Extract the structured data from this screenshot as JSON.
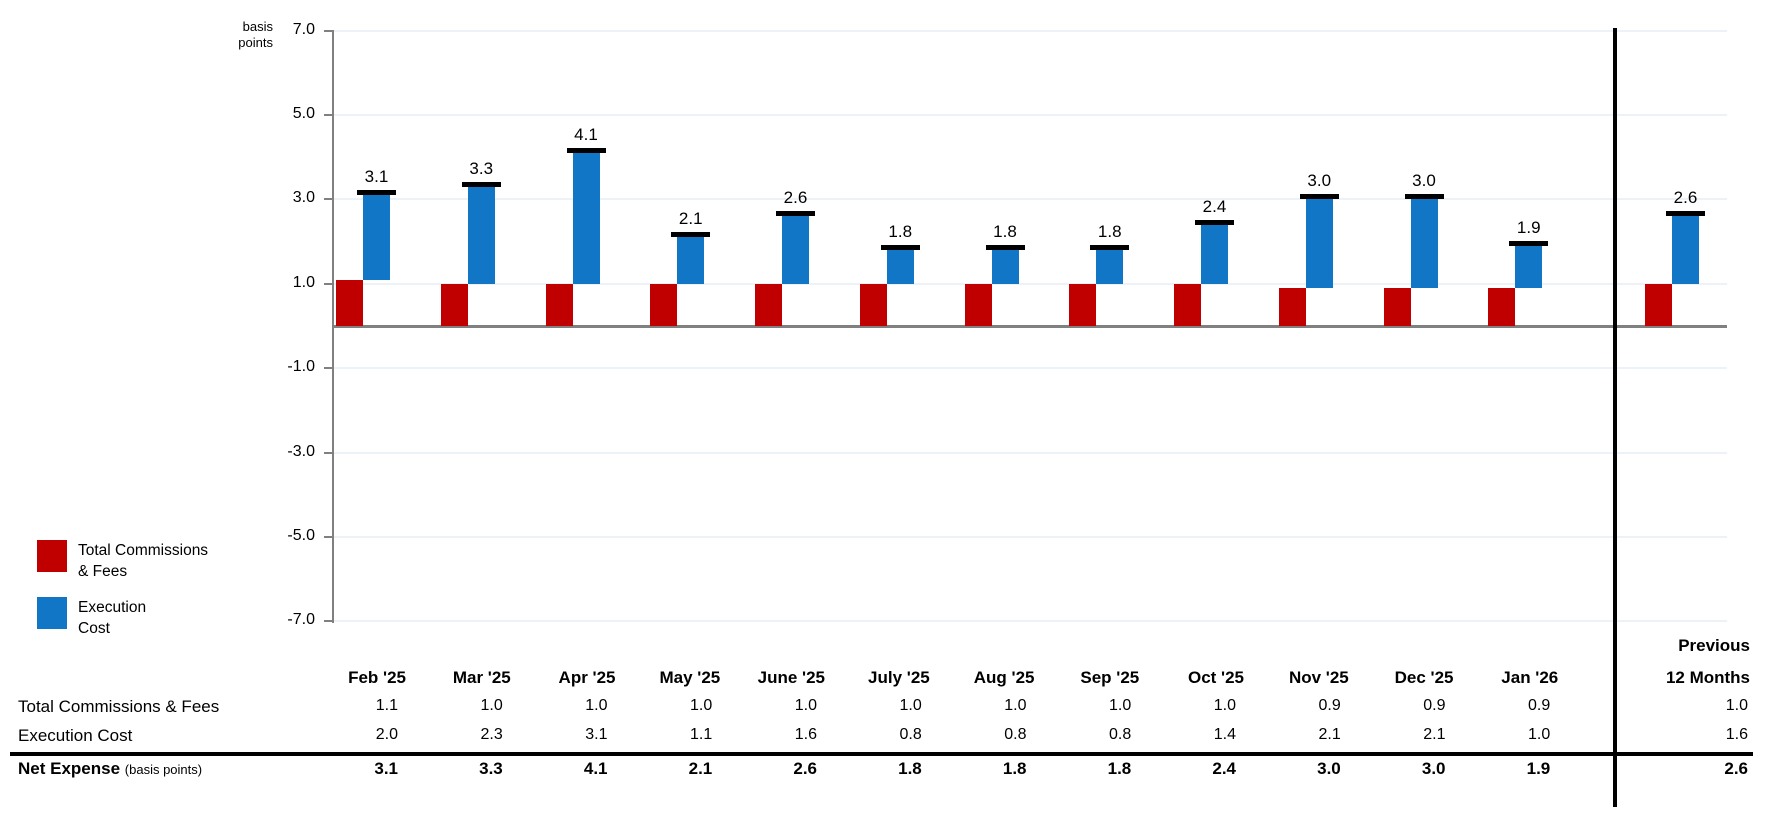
{
  "chart_data": {
    "type": "bar",
    "subtype": "stacked-waterfall-with-total-caps",
    "title": "",
    "ylabel": "basis points",
    "ylim": [
      -7.0,
      7.0
    ],
    "yticks": [
      7.0,
      5.0,
      3.0,
      1.0,
      -1.0,
      -3.0,
      -5.0,
      -7.0
    ],
    "grid": true,
    "legend_position": "bottom-left",
    "categories": [
      "Feb '25",
      "Mar '25",
      "Apr '25",
      "May '25",
      "June '25",
      "July '25",
      "Aug '25",
      "Sep '25",
      "Oct '25",
      "Nov '25",
      "Dec '25",
      "Jan '26"
    ],
    "summary_category": "Previous 12 Months",
    "series": [
      {
        "name": "Total Commissions & Fees",
        "color": "#C00000",
        "values": [
          1.1,
          1.0,
          1.0,
          1.0,
          1.0,
          1.0,
          1.0,
          1.0,
          1.0,
          0.9,
          0.9,
          0.9
        ],
        "summary_value": 1.0
      },
      {
        "name": "Execution Cost",
        "color": "#1176C5",
        "values": [
          2.0,
          2.3,
          3.1,
          1.1,
          1.6,
          0.8,
          0.8,
          0.8,
          1.4,
          2.1,
          2.1,
          1.0
        ],
        "summary_value": 1.6
      }
    ],
    "totals": {
      "name": "Net Expense (basis points)",
      "values": [
        3.1,
        3.3,
        4.1,
        2.1,
        2.6,
        1.8,
        1.8,
        1.8,
        2.4,
        3.0,
        3.0,
        1.9
      ],
      "summary_value": 2.6
    }
  },
  "axis": {
    "unit_label_line1": "basis",
    "unit_label_line2": "points",
    "tick_labels": [
      "7.0",
      "5.0",
      "3.0",
      "1.0",
      "-1.0",
      "-3.0",
      "-5.0",
      "-7.0"
    ]
  },
  "legend": {
    "items": [
      {
        "line1": "Total Commissions",
        "line2": "& Fees",
        "color": "#C00000"
      },
      {
        "line1": "Execution",
        "line2": "Cost",
        "color": "#1176C5"
      }
    ]
  },
  "table": {
    "column_headers": [
      "Feb '25",
      "Mar '25",
      "Apr '25",
      "May '25",
      "June '25",
      "July '25",
      "Aug '25",
      "Sep '25",
      "Oct '25",
      "Nov '25",
      "Dec '25",
      "Jan '26"
    ],
    "summary_header_line1": "Previous",
    "summary_header_line2": "12 Months",
    "rows": [
      {
        "label": "Total Commissions & Fees",
        "suffix": "",
        "bold": false,
        "values": [
          "1.1",
          "1.0",
          "1.0",
          "1.0",
          "1.0",
          "1.0",
          "1.0",
          "1.0",
          "1.0",
          "0.9",
          "0.9",
          "0.9"
        ],
        "summary": "1.0"
      },
      {
        "label": "Execution Cost",
        "suffix": "",
        "bold": false,
        "values": [
          "2.0",
          "2.3",
          "3.1",
          "1.1",
          "1.6",
          "0.8",
          "0.8",
          "0.8",
          "1.4",
          "2.1",
          "2.1",
          "1.0"
        ],
        "summary": "1.6"
      },
      {
        "label": "Net Expense",
        "suffix": "(basis points)",
        "bold": true,
        "values": [
          "3.1",
          "3.3",
          "4.1",
          "2.1",
          "2.6",
          "1.8",
          "1.8",
          "1.8",
          "2.4",
          "3.0",
          "3.0",
          "1.9"
        ],
        "summary": "2.6"
      }
    ]
  },
  "colors": {
    "commissions": "#C00000",
    "execution": "#1176C5",
    "gridline": "#EDF2F9",
    "axis": "#808080",
    "divider": "#000000",
    "cap": "#000000"
  }
}
